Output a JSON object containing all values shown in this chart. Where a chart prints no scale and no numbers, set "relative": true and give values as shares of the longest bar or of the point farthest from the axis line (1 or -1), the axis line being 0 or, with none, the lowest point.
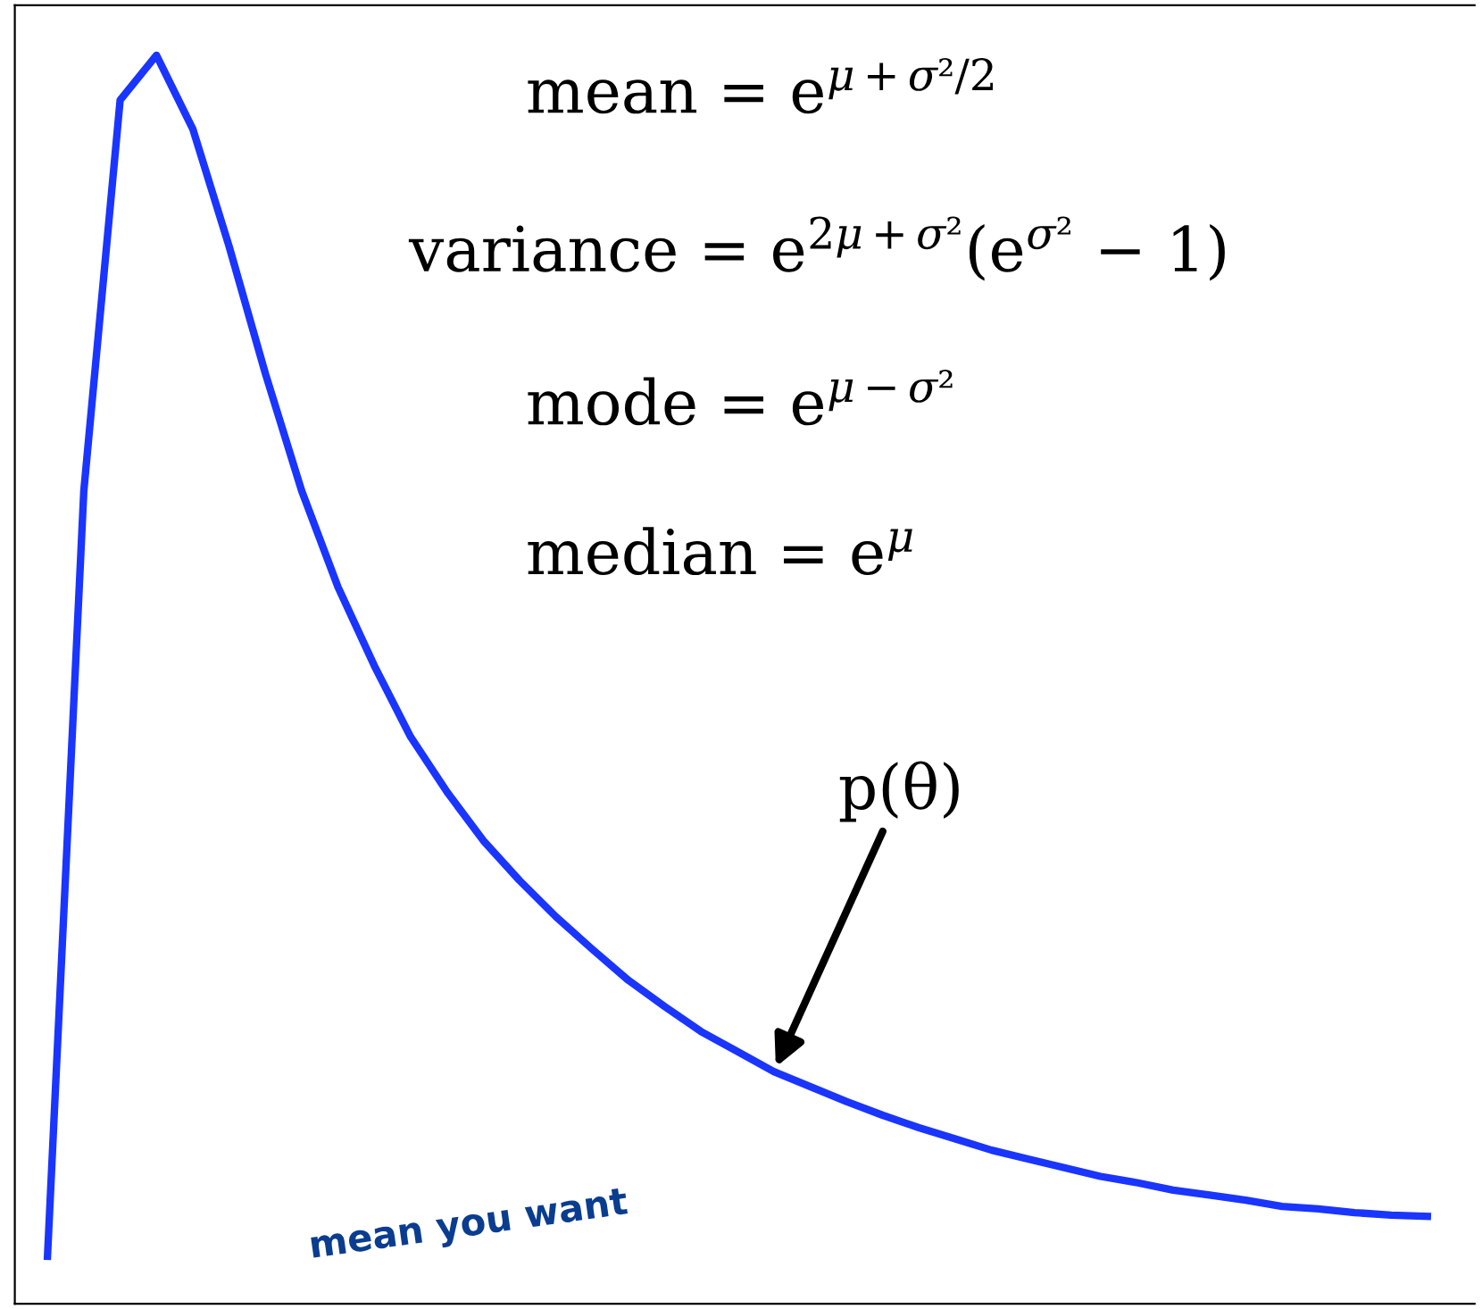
{
  "chart_data": {
    "type": "line",
    "relative": true,
    "color": "#1a35ff",
    "marker": "none",
    "line_style": "solid",
    "grid": false,
    "categories": [
      null,
      null,
      null,
      null,
      null,
      null,
      null,
      null,
      null,
      null,
      null,
      null,
      null,
      null,
      null,
      null,
      null,
      null,
      null,
      null,
      null,
      null,
      null,
      null,
      null,
      null,
      null,
      null,
      null,
      null,
      null,
      null,
      null,
      null,
      null,
      null,
      null,
      null,
      null
    ],
    "values": [
      0.038,
      0.651,
      0.964,
      1.0,
      0.941,
      0.847,
      0.745,
      0.651,
      0.574,
      0.511,
      0.454,
      0.41,
      0.371,
      0.339,
      0.31,
      0.284,
      0.259,
      0.238,
      0.218,
      0.202,
      0.186,
      0.174,
      0.162,
      0.151,
      0.141,
      0.132,
      0.123,
      0.116,
      0.109,
      0.102,
      0.097,
      0.091,
      0.087,
      0.083,
      0.078,
      0.076,
      0.073,
      0.071,
      0.07
    ],
    "annotations": [
      "mean = e$^{μ+σ²/2}$",
      "variance = e$^{2μ+σ²}$(e$^{σ²}$ − 1)",
      "mode = e$^{μ−σ²}$",
      "median = e$^{μ}$",
      "p(θ)",
      "mean you want"
    ]
  }
}
